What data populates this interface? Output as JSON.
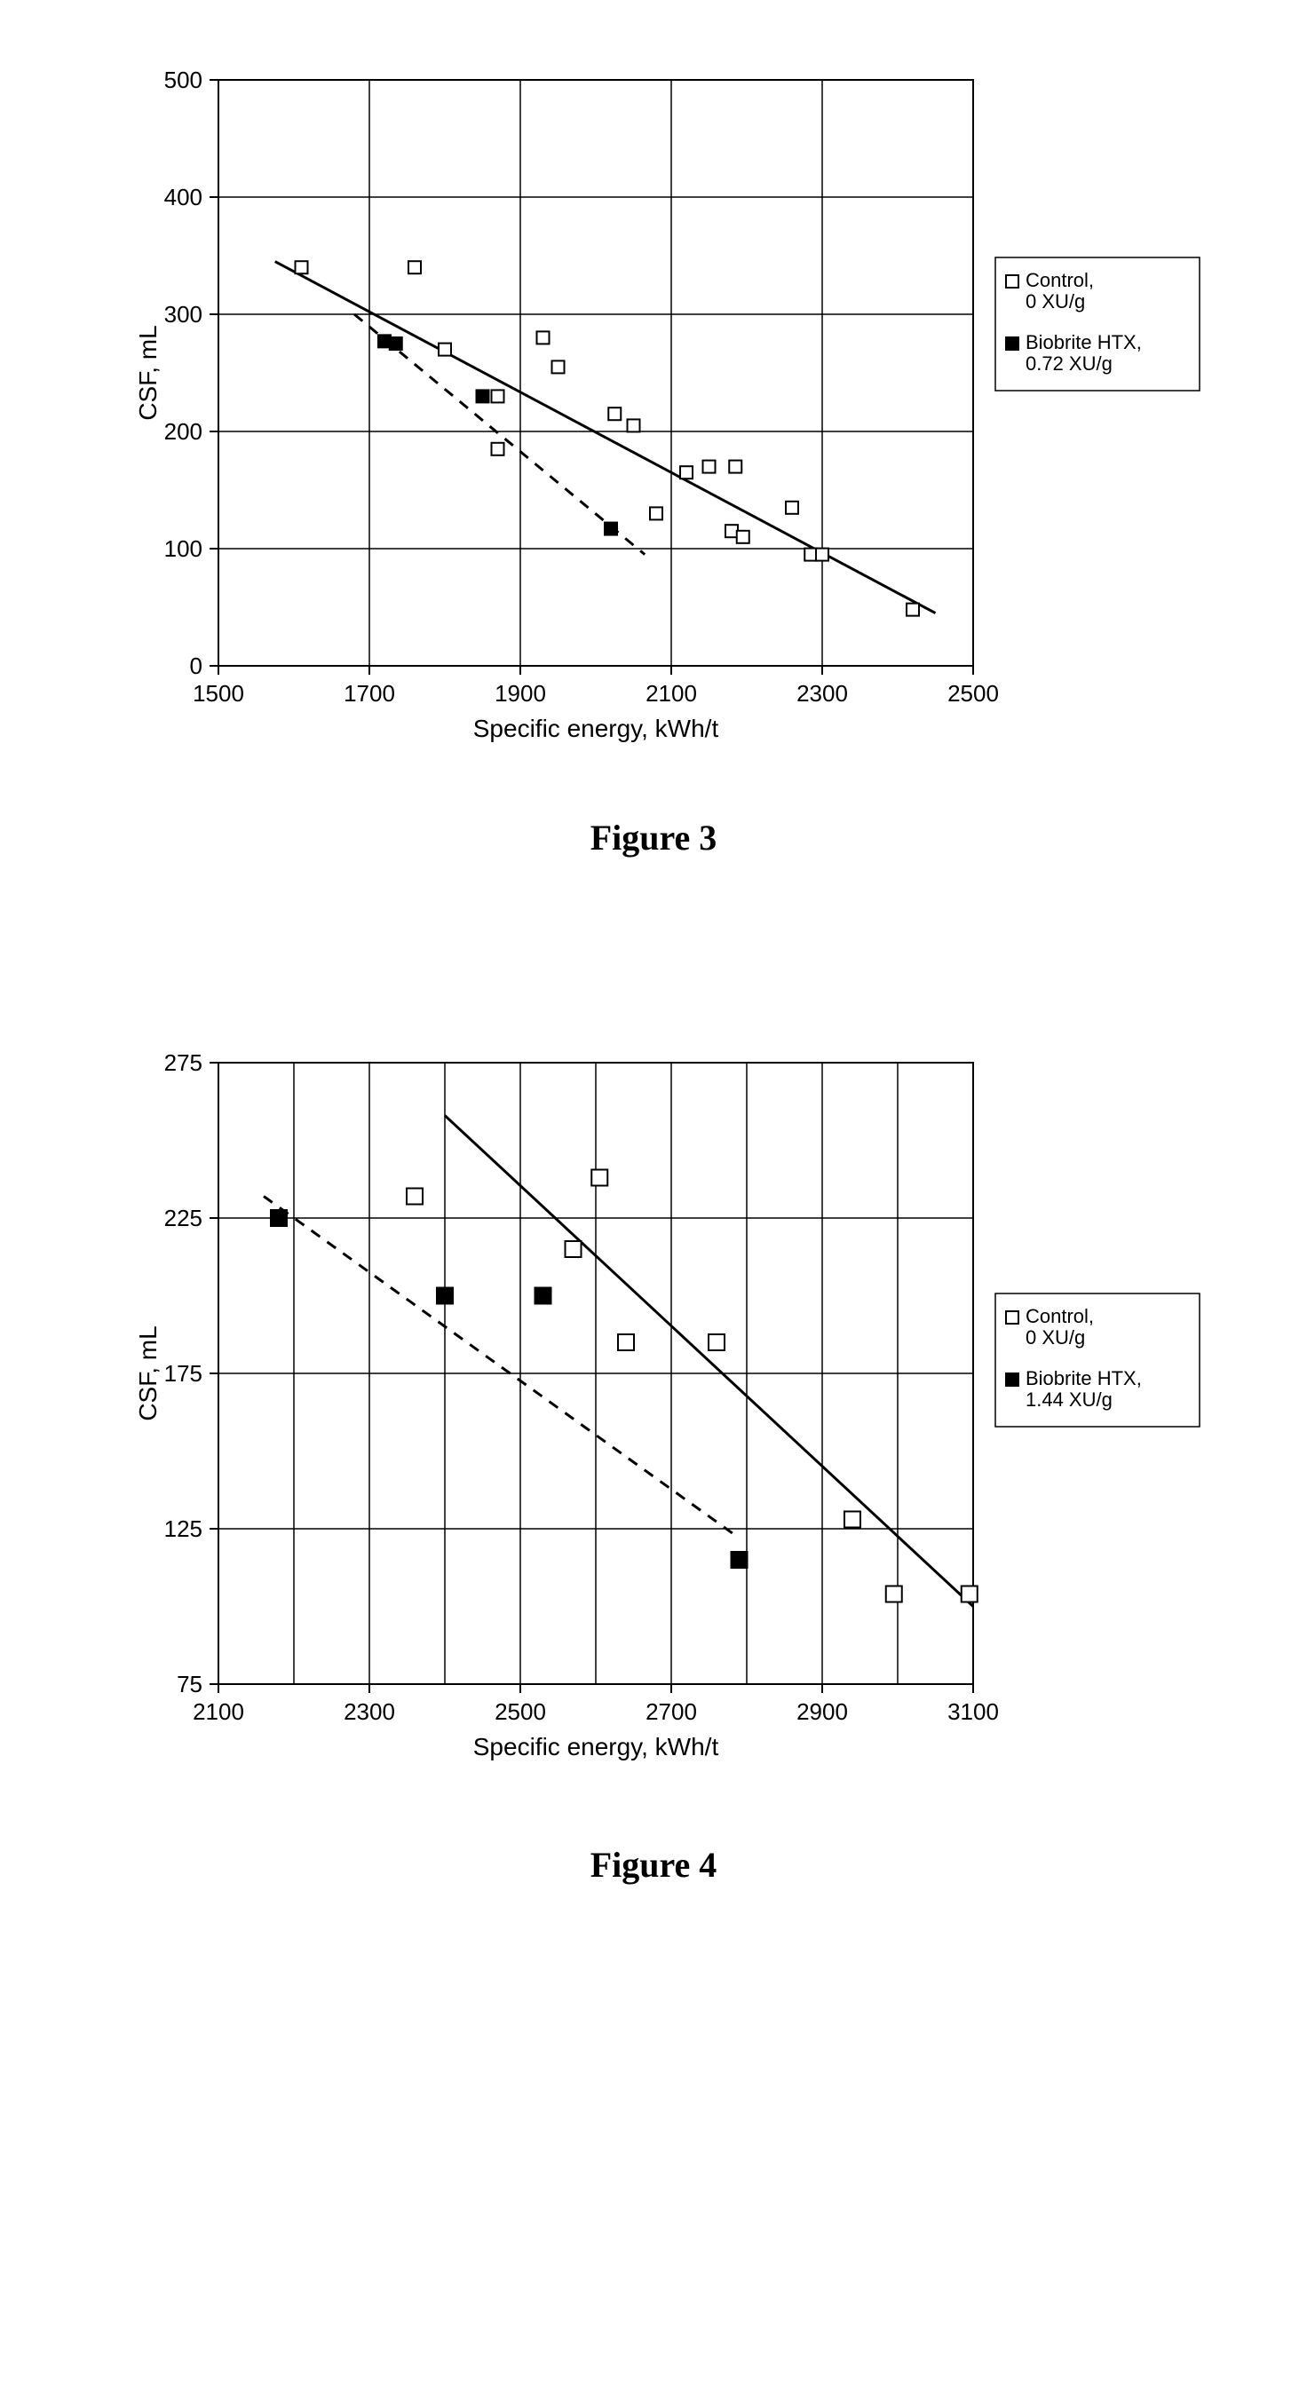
{
  "figure3": {
    "caption": "Figure 3",
    "type": "scatter",
    "xlabel": "Specific energy, kWh/t",
    "ylabel": "CSF, mL",
    "xlim": [
      1500,
      2500
    ],
    "ylim": [
      0,
      500
    ],
    "xtick_step": 200,
    "ytick_step": 100,
    "xticks": [
      1500,
      1700,
      1900,
      2100,
      2300,
      2500
    ],
    "yticks": [
      0,
      100,
      200,
      300,
      400,
      500
    ],
    "grid": true,
    "grid_color": "#000000",
    "background_color": "#ffffff",
    "axis_color": "#000000",
    "tick_label_fontsize": 26,
    "axis_label_fontsize": 28,
    "legend_fontsize": 22,
    "marker_size": 14,
    "line_width": 3,
    "legend": {
      "border_color": "#000000",
      "background_color": "#ffffff",
      "items": [
        {
          "label_line1": "Control,",
          "label_line2": "0 XU/g",
          "marker_fill": "#ffffff",
          "marker_stroke": "#000000"
        },
        {
          "label_line1": "Biobrite HTX,",
          "label_line2": "0.72 XU/g",
          "marker_fill": "#000000",
          "marker_stroke": "#000000"
        }
      ]
    },
    "series": [
      {
        "name": "Control, 0 XU/g",
        "marker": "square",
        "marker_fill": "#ffffff",
        "marker_stroke": "#000000",
        "points": [
          [
            1610,
            340
          ],
          [
            1760,
            340
          ],
          [
            1800,
            270
          ],
          [
            1870,
            230
          ],
          [
            1870,
            185
          ],
          [
            1930,
            280
          ],
          [
            1950,
            255
          ],
          [
            2025,
            215
          ],
          [
            2050,
            205
          ],
          [
            2080,
            130
          ],
          [
            2120,
            165
          ],
          [
            2150,
            170
          ],
          [
            2185,
            170
          ],
          [
            2180,
            115
          ],
          [
            2195,
            110
          ],
          [
            2260,
            135
          ],
          [
            2285,
            95
          ],
          [
            2300,
            95
          ],
          [
            2420,
            48
          ]
        ],
        "trend": {
          "style": "solid",
          "color": "#000000",
          "p1": [
            1575,
            345
          ],
          "p2": [
            2450,
            45
          ]
        }
      },
      {
        "name": "Biobrite HTX, 0.72 XU/g",
        "marker": "square",
        "marker_fill": "#000000",
        "marker_stroke": "#000000",
        "points": [
          [
            1720,
            277
          ],
          [
            1735,
            275
          ],
          [
            1850,
            230
          ],
          [
            2020,
            117
          ]
        ],
        "trend": {
          "style": "dashed",
          "color": "#000000",
          "p1": [
            1680,
            300
          ],
          "p2": [
            2065,
            95
          ]
        }
      }
    ]
  },
  "figure4": {
    "caption": "Figure 4",
    "type": "scatter",
    "xlabel": "Specific energy, kWh/t",
    "ylabel": "CSF, mL",
    "xlim": [
      2100,
      3100
    ],
    "ylim": [
      75,
      275
    ],
    "xtick_step": 200,
    "ytick_step": 50,
    "xticks": [
      2100,
      2300,
      2500,
      2700,
      2900,
      3100
    ],
    "yticks": [
      75,
      125,
      175,
      225,
      275
    ],
    "x_minor_gridlines": [
      2200,
      2400,
      2600,
      2800,
      3000
    ],
    "grid": true,
    "grid_color": "#000000",
    "background_color": "#ffffff",
    "axis_color": "#000000",
    "tick_label_fontsize": 26,
    "axis_label_fontsize": 28,
    "legend_fontsize": 22,
    "marker_size": 18,
    "line_width": 3,
    "legend": {
      "border_color": "#000000",
      "background_color": "#ffffff",
      "items": [
        {
          "label_line1": "Control,",
          "label_line2": "0 XU/g",
          "marker_fill": "#ffffff",
          "marker_stroke": "#000000"
        },
        {
          "label_line1": "Biobrite HTX,",
          "label_line2": "1.44 XU/g",
          "marker_fill": "#000000",
          "marker_stroke": "#000000"
        }
      ]
    },
    "series": [
      {
        "name": "Control, 0 XU/g",
        "marker": "square",
        "marker_fill": "#ffffff",
        "marker_stroke": "#000000",
        "points": [
          [
            2360,
            232
          ],
          [
            2570,
            215
          ],
          [
            2605,
            238
          ],
          [
            2640,
            185
          ],
          [
            2760,
            185
          ],
          [
            2940,
            128
          ],
          [
            2995,
            104
          ],
          [
            3095,
            104
          ]
        ],
        "trend": {
          "style": "solid",
          "color": "#000000",
          "p1": [
            2400,
            258
          ],
          "p2": [
            3100,
            100
          ]
        }
      },
      {
        "name": "Biobrite HTX, 1.44 XU/g",
        "marker": "square",
        "marker_fill": "#000000",
        "marker_stroke": "#000000",
        "points": [
          [
            2180,
            225
          ],
          [
            2400,
            200
          ],
          [
            2530,
            200
          ],
          [
            2790,
            115
          ]
        ],
        "trend": {
          "style": "dashed",
          "color": "#000000",
          "p1": [
            2160,
            232
          ],
          "p2": [
            2790,
            122
          ]
        }
      }
    ]
  }
}
